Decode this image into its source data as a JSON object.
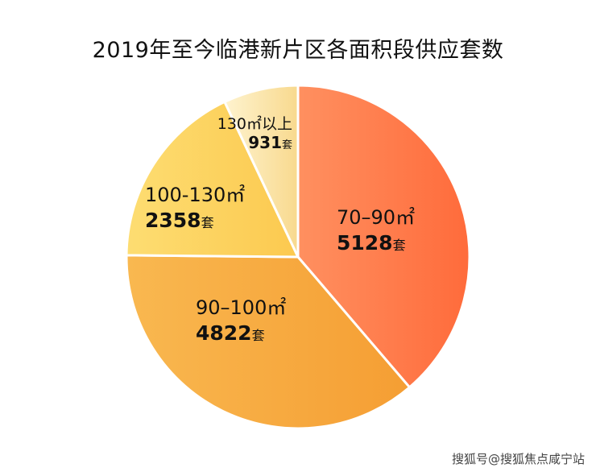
{
  "chart_data": {
    "type": "pie",
    "title": "2019年至今临港新片区各面积段供应套数",
    "start": "top",
    "direction": "clockwise",
    "unit": "套",
    "slices": [
      {
        "label": "70–90㎡",
        "value": 5128,
        "value_text": "5128",
        "colors": [
          "#ff9060",
          "#ff6b3b"
        ]
      },
      {
        "label": "90–100㎡",
        "value": 4822,
        "value_text": "4822",
        "colors": [
          "#f9b850",
          "#f59e33"
        ]
      },
      {
        "label": "100-130㎡",
        "value": 2358,
        "value_text": "2358",
        "colors": [
          "#fddd72",
          "#fcc94f"
        ]
      },
      {
        "label": "130㎡以上",
        "value": 931,
        "value_text": "931",
        "colors": [
          "#fef3cf",
          "#f8d98e"
        ]
      }
    ]
  },
  "watermark": "搜狐号@搜狐焦点咸宁站"
}
